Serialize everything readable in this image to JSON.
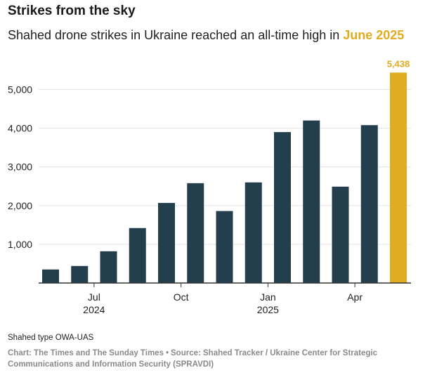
{
  "header": {
    "title": "Strikes from the sky",
    "subtitle_prefix": "Shahed drone strikes in Ukraine reached an all-time high in ",
    "subtitle_highlight": "June 2025"
  },
  "footer": {
    "note": "Shahed type OWA-UAS",
    "credit": "Chart: The Times and The Sunday Times",
    "separator": "•",
    "source": "Source: Shahed Tracker / Ukraine Center for Strategic Communications and Information Security (SPRAVDI)"
  },
  "colors": {
    "bar": "#233f4e",
    "highlight": "#e2ac22",
    "grid": "#e4e4e4",
    "axis": "#333333",
    "text": "#1f1f1f"
  },
  "chart_data": {
    "type": "bar",
    "categories": [
      "2024-06",
      "2024-07",
      "2024-08",
      "2024-09",
      "2024-10",
      "2024-11",
      "2024-12",
      "2025-01",
      "2025-02",
      "2025-03",
      "2025-04",
      "2025-05",
      "2025-06"
    ],
    "values": [
      350,
      440,
      820,
      1420,
      2070,
      2580,
      1860,
      2600,
      3900,
      4200,
      2490,
      4080,
      5438
    ],
    "highlight_index": 12,
    "highlight_label": "5,438",
    "ylim": [
      0,
      5500
    ],
    "yticks": [
      1000,
      2000,
      3000,
      4000,
      5000
    ],
    "ytick_labels": [
      "1,000",
      "2,000",
      "3,000",
      "4,000",
      "5,000"
    ],
    "xticks": [
      {
        "index": 1,
        "label": "Jul",
        "year": "2024"
      },
      {
        "index": 4,
        "label": "Oct",
        "year": ""
      },
      {
        "index": 7,
        "label": "Jan",
        "year": "2025"
      },
      {
        "index": 10,
        "label": "Apr",
        "year": ""
      }
    ],
    "grid": true,
    "xlabel": "",
    "ylabel": ""
  }
}
